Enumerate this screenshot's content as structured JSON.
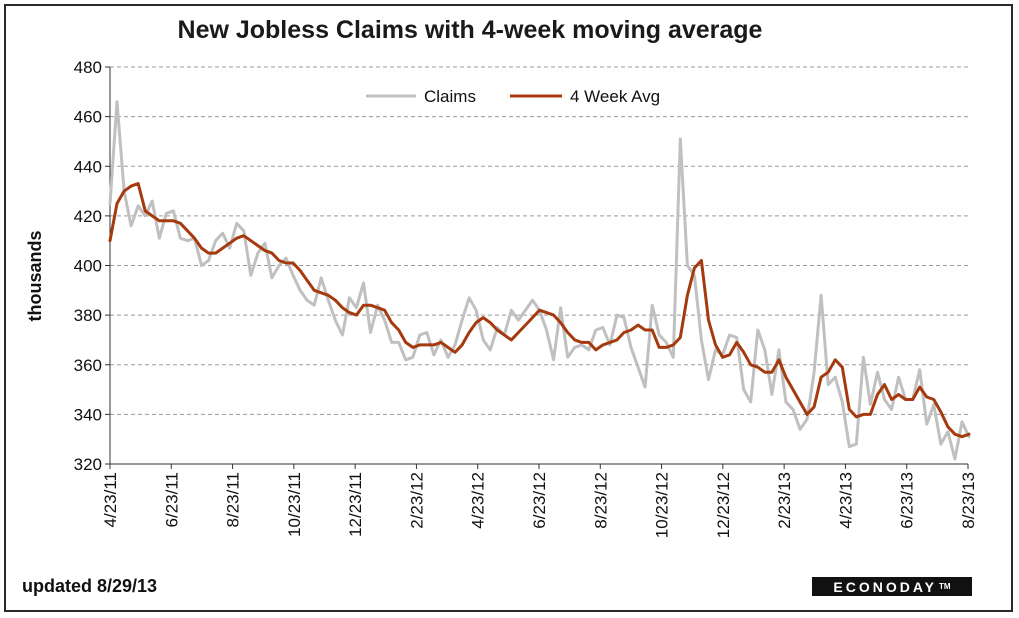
{
  "chart_data": {
    "type": "line",
    "title": "New Jobless Claims with 4-week moving average",
    "ylabel": "thousands",
    "ylim": [
      320,
      480
    ],
    "yticks": [
      320,
      340,
      360,
      380,
      400,
      420,
      440,
      460,
      480
    ],
    "xlim": [
      "2011-04-23",
      "2013-08-23"
    ],
    "xticks": [
      "4/23/11",
      "6/23/11",
      "8/23/11",
      "10/23/11",
      "12/23/11",
      "2/23/12",
      "4/23/12",
      "6/23/12",
      "8/23/12",
      "10/23/12",
      "12/23/12",
      "2/23/13",
      "4/23/13",
      "6/23/13",
      "8/23/13"
    ],
    "grid": "horizontal dashed",
    "legend_position": "top-center",
    "series": [
      {
        "name": "Claims",
        "color": "#c0c0c0",
        "values": [
          [
            "2011-04-23",
            425
          ],
          [
            "2011-04-30",
            466
          ],
          [
            "2011-05-07",
            430
          ],
          [
            "2011-05-14",
            416
          ],
          [
            "2011-05-21",
            424
          ],
          [
            "2011-05-28",
            420
          ],
          [
            "2011-06-04",
            426
          ],
          [
            "2011-06-11",
            411
          ],
          [
            "2011-06-18",
            421
          ],
          [
            "2011-06-25",
            422
          ],
          [
            "2011-07-02",
            411
          ],
          [
            "2011-07-09",
            410
          ],
          [
            "2011-07-16",
            411
          ],
          [
            "2011-07-23",
            400
          ],
          [
            "2011-07-30",
            402
          ],
          [
            "2011-08-06",
            410
          ],
          [
            "2011-08-13",
            413
          ],
          [
            "2011-08-20",
            407
          ],
          [
            "2011-08-27",
            417
          ],
          [
            "2011-09-03",
            414
          ],
          [
            "2011-09-10",
            396
          ],
          [
            "2011-09-17",
            405
          ],
          [
            "2011-09-24",
            409
          ],
          [
            "2011-10-01",
            395
          ],
          [
            "2011-10-08",
            400
          ],
          [
            "2011-10-15",
            403
          ],
          [
            "2011-10-22",
            396
          ],
          [
            "2011-10-29",
            390
          ],
          [
            "2011-11-05",
            386
          ],
          [
            "2011-11-12",
            384
          ],
          [
            "2011-11-19",
            395
          ],
          [
            "2011-11-26",
            386
          ],
          [
            "2011-12-03",
            378
          ],
          [
            "2011-12-10",
            372
          ],
          [
            "2011-12-17",
            387
          ],
          [
            "2011-12-24",
            383
          ],
          [
            "2011-12-31",
            393
          ],
          [
            "2012-01-07",
            373
          ],
          [
            "2012-01-14",
            384
          ],
          [
            "2012-01-21",
            378
          ],
          [
            "2012-01-28",
            369
          ],
          [
            "2012-02-04",
            369
          ],
          [
            "2012-02-11",
            362
          ],
          [
            "2012-02-18",
            363
          ],
          [
            "2012-02-25",
            372
          ],
          [
            "2012-03-03",
            373
          ],
          [
            "2012-03-10",
            364
          ],
          [
            "2012-03-17",
            370
          ],
          [
            "2012-03-24",
            363
          ],
          [
            "2012-03-31",
            368
          ],
          [
            "2012-04-07",
            378
          ],
          [
            "2012-04-14",
            387
          ],
          [
            "2012-04-21",
            382
          ],
          [
            "2012-04-28",
            370
          ],
          [
            "2012-05-05",
            366
          ],
          [
            "2012-05-12",
            375
          ],
          [
            "2012-05-19",
            372
          ],
          [
            "2012-05-26",
            382
          ],
          [
            "2012-06-02",
            378
          ],
          [
            "2012-06-09",
            382
          ],
          [
            "2012-06-16",
            386
          ],
          [
            "2012-06-23",
            382
          ],
          [
            "2012-06-30",
            374
          ],
          [
            "2012-07-07",
            362
          ],
          [
            "2012-07-14",
            383
          ],
          [
            "2012-07-21",
            363
          ],
          [
            "2012-07-28",
            367
          ],
          [
            "2012-08-04",
            368
          ],
          [
            "2012-08-11",
            366
          ],
          [
            "2012-08-18",
            374
          ],
          [
            "2012-08-25",
            375
          ],
          [
            "2012-09-01",
            368
          ],
          [
            "2012-09-08",
            380
          ],
          [
            "2012-09-15",
            379
          ],
          [
            "2012-09-22",
            367
          ],
          [
            "2012-10-06",
            351
          ],
          [
            "2012-10-13",
            384
          ],
          [
            "2012-10-20",
            372
          ],
          [
            "2012-10-27",
            369
          ],
          [
            "2012-11-03",
            363
          ],
          [
            "2012-11-10",
            451
          ],
          [
            "2012-11-17",
            400
          ],
          [
            "2012-11-24",
            396
          ],
          [
            "2012-12-01",
            370
          ],
          [
            "2012-12-08",
            354
          ],
          [
            "2012-12-15",
            366
          ],
          [
            "2012-12-22",
            364
          ],
          [
            "2012-12-29",
            372
          ],
          [
            "2013-01-05",
            371
          ],
          [
            "2013-01-12",
            350
          ],
          [
            "2013-01-19",
            345
          ],
          [
            "2013-01-26",
            374
          ],
          [
            "2013-02-02",
            366
          ],
          [
            "2013-02-09",
            348
          ],
          [
            "2013-02-16",
            366
          ],
          [
            "2013-02-23",
            345
          ],
          [
            "2013-03-02",
            342
          ],
          [
            "2013-03-09",
            334
          ],
          [
            "2013-03-16",
            338
          ],
          [
            "2013-03-23",
            357
          ],
          [
            "2013-03-30",
            388
          ],
          [
            "2013-04-06",
            352
          ],
          [
            "2013-04-13",
            355
          ],
          [
            "2013-04-20",
            345
          ],
          [
            "2013-04-27",
            327
          ],
          [
            "2013-05-04",
            328
          ],
          [
            "2013-05-11",
            363
          ],
          [
            "2013-05-18",
            344
          ],
          [
            "2013-05-25",
            357
          ],
          [
            "2013-06-01",
            346
          ],
          [
            "2013-06-08",
            342
          ],
          [
            "2013-06-15",
            355
          ],
          [
            "2013-06-22",
            346
          ],
          [
            "2013-06-29",
            346
          ],
          [
            "2013-07-06",
            358
          ],
          [
            "2013-07-13",
            336
          ],
          [
            "2013-07-20",
            344
          ],
          [
            "2013-07-27",
            328
          ],
          [
            "2013-08-03",
            333
          ],
          [
            "2013-08-10",
            322
          ],
          [
            "2013-08-17",
            337
          ],
          [
            "2013-08-24",
            331
          ]
        ]
      },
      {
        "name": "4 Week Avg",
        "color": "#a53a0f",
        "values": [
          [
            "2011-04-23",
            410
          ],
          [
            "2011-04-30",
            425
          ],
          [
            "2011-05-07",
            430
          ],
          [
            "2011-05-14",
            432
          ],
          [
            "2011-05-21",
            433
          ],
          [
            "2011-05-28",
            422
          ],
          [
            "2011-06-04",
            420
          ],
          [
            "2011-06-11",
            418
          ],
          [
            "2011-06-18",
            418
          ],
          [
            "2011-06-25",
            418
          ],
          [
            "2011-07-02",
            417
          ],
          [
            "2011-07-09",
            414
          ],
          [
            "2011-07-16",
            411
          ],
          [
            "2011-07-23",
            407
          ],
          [
            "2011-07-30",
            405
          ],
          [
            "2011-08-06",
            405
          ],
          [
            "2011-08-13",
            407
          ],
          [
            "2011-08-20",
            409
          ],
          [
            "2011-08-27",
            411
          ],
          [
            "2011-09-03",
            412
          ],
          [
            "2011-09-10",
            410
          ],
          [
            "2011-09-17",
            408
          ],
          [
            "2011-09-24",
            406
          ],
          [
            "2011-10-01",
            405
          ],
          [
            "2011-10-08",
            402
          ],
          [
            "2011-10-15",
            401
          ],
          [
            "2011-10-22",
            401
          ],
          [
            "2011-10-29",
            398
          ],
          [
            "2011-11-05",
            394
          ],
          [
            "2011-11-12",
            390
          ],
          [
            "2011-11-19",
            389
          ],
          [
            "2011-11-26",
            388
          ],
          [
            "2011-12-03",
            386
          ],
          [
            "2011-12-10",
            383
          ],
          [
            "2011-12-17",
            381
          ],
          [
            "2011-12-24",
            380
          ],
          [
            "2011-12-31",
            384
          ],
          [
            "2012-01-07",
            384
          ],
          [
            "2012-01-14",
            383
          ],
          [
            "2012-01-21",
            382
          ],
          [
            "2012-01-28",
            377
          ],
          [
            "2012-02-04",
            374
          ],
          [
            "2012-02-11",
            369
          ],
          [
            "2012-02-18",
            367
          ],
          [
            "2012-02-25",
            368
          ],
          [
            "2012-03-03",
            368
          ],
          [
            "2012-03-10",
            368
          ],
          [
            "2012-03-17",
            369
          ],
          [
            "2012-03-24",
            367
          ],
          [
            "2012-03-31",
            365
          ],
          [
            "2012-04-07",
            368
          ],
          [
            "2012-04-14",
            373
          ],
          [
            "2012-04-21",
            377
          ],
          [
            "2012-04-28",
            379
          ],
          [
            "2012-05-05",
            377
          ],
          [
            "2012-05-12",
            374
          ],
          [
            "2012-05-19",
            372
          ],
          [
            "2012-05-26",
            370
          ],
          [
            "2012-06-02",
            373
          ],
          [
            "2012-06-09",
            376
          ],
          [
            "2012-06-16",
            379
          ],
          [
            "2012-06-23",
            382
          ],
          [
            "2012-06-30",
            381
          ],
          [
            "2012-07-07",
            380
          ],
          [
            "2012-07-14",
            377
          ],
          [
            "2012-07-21",
            373
          ],
          [
            "2012-07-28",
            370
          ],
          [
            "2012-08-04",
            369
          ],
          [
            "2012-08-11",
            369
          ],
          [
            "2012-08-18",
            366
          ],
          [
            "2012-08-25",
            368
          ],
          [
            "2012-09-01",
            369
          ],
          [
            "2012-09-08",
            370
          ],
          [
            "2012-09-15",
            373
          ],
          [
            "2012-09-22",
            374
          ],
          [
            "2012-09-29",
            376
          ],
          [
            "2012-10-06",
            374
          ],
          [
            "2012-10-13",
            374
          ],
          [
            "2012-10-20",
            367
          ],
          [
            "2012-10-27",
            367
          ],
          [
            "2012-11-03",
            368
          ],
          [
            "2012-11-10",
            371
          ],
          [
            "2012-11-17",
            388
          ],
          [
            "2012-11-24",
            399
          ],
          [
            "2012-12-01",
            402
          ],
          [
            "2012-12-08",
            378
          ],
          [
            "2012-12-15",
            368
          ],
          [
            "2012-12-22",
            363
          ],
          [
            "2012-12-29",
            364
          ],
          [
            "2013-01-05",
            369
          ],
          [
            "2013-01-12",
            365
          ],
          [
            "2013-01-19",
            360
          ],
          [
            "2013-01-26",
            359
          ],
          [
            "2013-02-02",
            357
          ],
          [
            "2013-02-09",
            357
          ],
          [
            "2013-02-16",
            362
          ],
          [
            "2013-02-23",
            355
          ],
          [
            "2013-03-02",
            350
          ],
          [
            "2013-03-09",
            345
          ],
          [
            "2013-03-16",
            340
          ],
          [
            "2013-03-23",
            343
          ],
          [
            "2013-03-30",
            355
          ],
          [
            "2013-04-06",
            357
          ],
          [
            "2013-04-13",
            362
          ],
          [
            "2013-04-20",
            359
          ],
          [
            "2013-04-27",
            342
          ],
          [
            "2013-05-04",
            339
          ],
          [
            "2013-05-11",
            340
          ],
          [
            "2013-05-18",
            340
          ],
          [
            "2013-05-25",
            348
          ],
          [
            "2013-06-01",
            352
          ],
          [
            "2013-06-08",
            346
          ],
          [
            "2013-06-15",
            348
          ],
          [
            "2013-06-22",
            346
          ],
          [
            "2013-06-29",
            346
          ],
          [
            "2013-07-06",
            351
          ],
          [
            "2013-07-13",
            347
          ],
          [
            "2013-07-20",
            346
          ],
          [
            "2013-07-27",
            341
          ],
          [
            "2013-08-03",
            335
          ],
          [
            "2013-08-10",
            332
          ],
          [
            "2013-08-17",
            331
          ],
          [
            "2013-08-24",
            332
          ]
        ]
      }
    ]
  },
  "footer": {
    "updated": "updated 8/29/13",
    "logo": "ECONODAY",
    "logo_mark": "TM"
  }
}
